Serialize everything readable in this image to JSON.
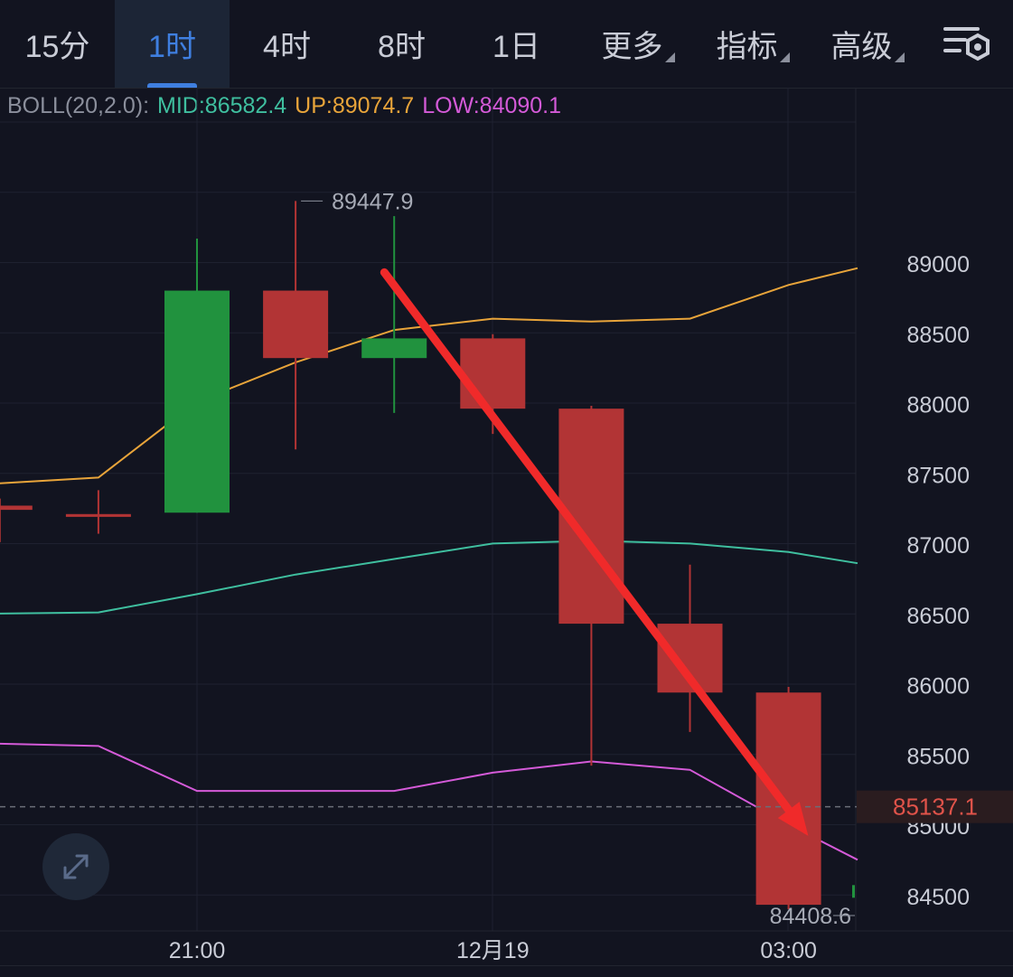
{
  "tabs": [
    {
      "label": "15分",
      "active": false,
      "caret": false
    },
    {
      "label": "1时",
      "active": true,
      "caret": false
    },
    {
      "label": "4时",
      "active": false,
      "caret": false
    },
    {
      "label": "8时",
      "active": false,
      "caret": false
    },
    {
      "label": "1日",
      "active": false,
      "caret": false
    },
    {
      "label": "更多",
      "active": false,
      "caret": true
    },
    {
      "label": "指标",
      "active": false,
      "caret": true
    },
    {
      "label": "高级",
      "active": false,
      "caret": true
    }
  ],
  "settings_icon": "chart-settings-icon",
  "expand_icon": "expand-arrows-icon",
  "legend": {
    "label": "BOLL(20,2.0):",
    "mid": "MID:86582.4",
    "up": "UP:89074.7",
    "low": "LOW:84090.1"
  },
  "colors": {
    "up_candle": "#21923e",
    "down_candle": "#b23435",
    "mid_line": "#3fbf9f",
    "upper_line": "#e8a43a",
    "lower_line": "#d45ad8",
    "accent": "#3f7fe0",
    "price_tag": "#e0534a",
    "arrow": "#f02a2a"
  },
  "chart_data": {
    "type": "candlestick",
    "y_ticks": [
      84500,
      85000,
      85500,
      86000,
      86500,
      87000,
      87500,
      88000,
      88500,
      89000
    ],
    "y_tick_labels": [
      "84500",
      "85000",
      "85500",
      "86000",
      "86500",
      "87000",
      "87500",
      "88000",
      "88500",
      "89000"
    ],
    "ylim": [
      84240,
      90190
    ],
    "x_index_range": [
      -0.2,
      8.2
    ],
    "x_labels": [
      {
        "index": 2,
        "label": "21:00"
      },
      {
        "index": 5,
        "label": "12月19"
      },
      {
        "index": 8,
        "label": "03:00"
      }
    ],
    "candles": [
      {
        "index": 0,
        "open": 87280,
        "high": 87330,
        "low": 87020,
        "close": 87250
      },
      {
        "index": 1,
        "open": 87220,
        "high": 87390,
        "low": 87080,
        "close": 87200
      },
      {
        "index": 2,
        "open": 87230,
        "high": 89180,
        "low": 87230,
        "close": 88810
      },
      {
        "index": 3,
        "open": 88810,
        "high": 89447.9,
        "low": 87680,
        "close": 88330
      },
      {
        "index": 4,
        "open": 88330,
        "high": 89340,
        "low": 87940,
        "close": 88470
      },
      {
        "index": 5,
        "open": 88470,
        "high": 88500,
        "low": 87790,
        "close": 87970
      },
      {
        "index": 6,
        "open": 87970,
        "high": 87990,
        "low": 85430,
        "close": 86440
      },
      {
        "index": 7,
        "open": 86440,
        "high": 86860,
        "low": 85670,
        "close": 85950
      },
      {
        "index": 8,
        "open": 85950,
        "high": 85990,
        "low": 84408.6,
        "close": 84440
      }
    ],
    "series": [
      {
        "name": "UP",
        "x": [
          -0.2,
          1,
          2,
          3,
          4,
          5,
          6,
          7,
          8,
          8.7
        ],
        "values": [
          87430,
          87480,
          88020,
          88300,
          88530,
          88610,
          88590,
          88610,
          88850,
          88970
        ]
      },
      {
        "name": "MID",
        "x": [
          -0.2,
          1,
          2,
          3,
          4,
          5,
          6,
          7,
          8,
          8.7
        ],
        "values": [
          86510,
          86520,
          86650,
          86790,
          86900,
          87010,
          87030,
          87010,
          86950,
          86870
        ]
      },
      {
        "name": "LOW",
        "x": [
          -0.2,
          1,
          2,
          3,
          4,
          5,
          6,
          7,
          8,
          8.7
        ],
        "values": [
          85590,
          85570,
          85250,
          85250,
          85250,
          85380,
          85460,
          85400,
          85010,
          84760
        ]
      }
    ],
    "last_price": 85137.1,
    "last_price_label": "85137.1",
    "high_annotation": {
      "index": 3,
      "value": 89447.9,
      "label": "89447.9"
    },
    "low_annotation": {
      "index": 8,
      "value": 84408.6,
      "label": "84408.6"
    },
    "trend_arrow": {
      "from": {
        "x": 3.9,
        "y": 88940
      },
      "to": {
        "x": 8.2,
        "y": 84930
      }
    }
  }
}
